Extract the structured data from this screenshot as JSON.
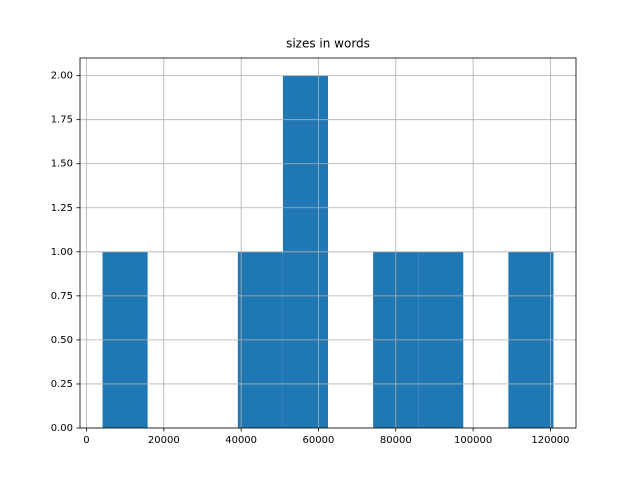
{
  "chart_data": {
    "type": "histogram",
    "title": "sizes in words",
    "bins": [
      4156,
      15818,
      27480,
      39142,
      50804,
      62466,
      74128,
      85790,
      97452,
      109114,
      120776
    ],
    "values": [
      1,
      0,
      0,
      1,
      2,
      0,
      1,
      1,
      0,
      1
    ],
    "color": "#1f77b4",
    "xlim": [
      -1675,
      126607
    ],
    "xticks": [
      0,
      20000,
      40000,
      60000,
      80000,
      100000,
      120000
    ],
    "ylim": [
      0,
      2.1
    ],
    "yticks": [
      {
        "value": 0,
        "label": "0.00"
      },
      {
        "value": 0.25,
        "label": "0.25"
      },
      {
        "value": 0.5,
        "label": "0.50"
      },
      {
        "value": 0.75,
        "label": "0.75"
      },
      {
        "value": 1,
        "label": "1.00"
      },
      {
        "value": 1.25,
        "label": "1.25"
      },
      {
        "value": 1.5,
        "label": "1.50"
      },
      {
        "value": 1.75,
        "label": "1.75"
      },
      {
        "value": 2,
        "label": "2.00"
      }
    ],
    "grid": true
  }
}
